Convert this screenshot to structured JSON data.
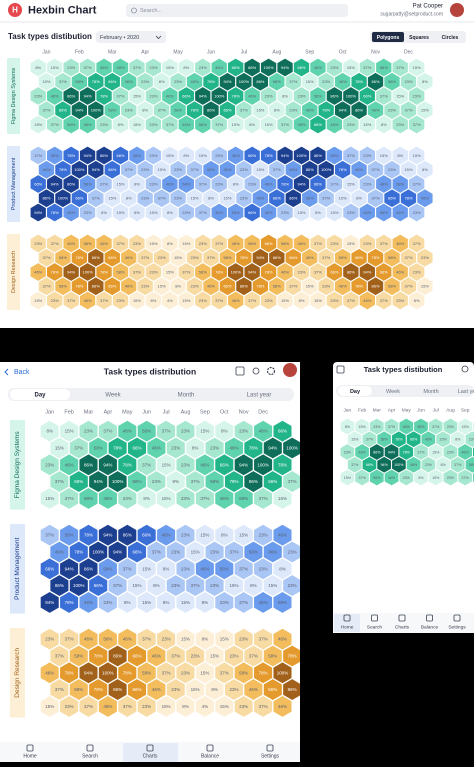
{
  "desktop": {
    "logo": "H",
    "title": "Hexbin Chart",
    "search": "Search...",
    "user_name": "Pat Cooper",
    "user_email": "sugarpatty@setproduct.com",
    "chart_title": "Task types distibution",
    "period": "February • 2020",
    "views": [
      "Polygons",
      "Squares",
      "Circles"
    ]
  },
  "months": [
    "Jan",
    "Feb",
    "Mar",
    "Apr",
    "May",
    "Jun",
    "Jul",
    "Aug",
    "Sep",
    "Oct",
    "Nov",
    "Dec"
  ],
  "groups": [
    {
      "name": "Figma Design Systems",
      "colors": [
        "#d6f5ea",
        "#a6e8cf",
        "#5fd3ad",
        "#23b58a",
        "#0e6e5a"
      ],
      "values": [
        [
          8,
          15,
          23,
          37,
          46,
          58,
          37,
          23,
          15,
          8,
          23,
          46,
          66,
          86,
          100,
          94,
          66,
          46,
          23,
          15,
          37,
          58,
          37,
          15
        ],
        [
          15,
          37,
          58,
          78,
          66,
          46,
          23,
          8,
          23,
          46,
          78,
          94,
          100,
          86,
          58,
          37,
          15,
          23,
          46,
          78,
          86,
          58,
          23,
          8
        ],
        [
          23,
          46,
          86,
          94,
          78,
          37,
          15,
          23,
          46,
          66,
          94,
          100,
          78,
          46,
          23,
          8,
          23,
          58,
          86,
          100,
          66,
          37,
          15,
          23
        ],
        [
          37,
          66,
          94,
          100,
          58,
          23,
          8,
          37,
          58,
          78,
          86,
          66,
          37,
          15,
          8,
          23,
          46,
          78,
          94,
          86,
          46,
          23,
          37,
          15
        ],
        [
          15,
          37,
          58,
          46,
          23,
          8,
          15,
          23,
          37,
          46,
          58,
          37,
          15,
          8,
          15,
          37,
          58,
          66,
          46,
          23,
          15,
          8,
          23,
          37
        ]
      ],
      "labels": [
        [
          "8%",
          "15%",
          "23%",
          "37%",
          "46%",
          "58%",
          "37%",
          "23%",
          "15%",
          "8%",
          "23%",
          "46%",
          "66%",
          "86%",
          "100%",
          "94%",
          "66%",
          "46%",
          "23%",
          "15%",
          "37%",
          "58%",
          "37%",
          "15%"
        ],
        [
          "15%",
          "37%",
          "58%",
          "78%",
          "66%",
          "46%",
          "23%",
          "8%",
          "23%",
          "46%",
          "78%",
          "94%",
          "100%",
          "86%",
          "58%",
          "37%",
          "15%",
          "23%",
          "46%",
          "78%",
          "86%",
          "58%",
          "23%",
          "8%"
        ],
        [
          "23%",
          "46%",
          "86%",
          "94%",
          "78%",
          "37%",
          "15%",
          "23%",
          "46%",
          "66%",
          "94%",
          "100%",
          "78%",
          "46%",
          "23%",
          "8%",
          "23%",
          "58%",
          "86%",
          "100%",
          "66%",
          "37%",
          "15%",
          "23%"
        ],
        [
          "37%",
          "66%",
          "94%",
          "100%",
          "58%",
          "23%",
          "8%",
          "37%",
          "58%",
          "78%",
          "86%",
          "66%",
          "37%",
          "15%",
          "8%",
          "23%",
          "46%",
          "78%",
          "94%",
          "86%",
          "46%",
          "23%",
          "37%",
          "15%"
        ],
        [
          "15%",
          "37%",
          "58%",
          "46%",
          "23%",
          "8%",
          "15%",
          "23%",
          "37%",
          "46%",
          "58%",
          "37%",
          "15%",
          "8%",
          "15%",
          "37%",
          "58%",
          "66%",
          "46%",
          "23%",
          "15%",
          "8%",
          "23%",
          "37%"
        ]
      ]
    },
    {
      "name": "Product Management",
      "colors": [
        "#dde8fb",
        "#aac6f5",
        "#6b9bec",
        "#3b6fd8",
        "#1d3f8f"
      ],
      "values": [
        [
          37,
          58,
          78,
          94,
          86,
          66,
          46,
          23,
          15,
          8,
          15,
          23,
          46,
          66,
          78,
          94,
          100,
          86,
          58,
          37,
          23,
          15,
          8,
          15
        ],
        [
          46,
          78,
          100,
          94,
          66,
          37,
          23,
          15,
          23,
          37,
          58,
          46,
          23,
          15,
          37,
          58,
          86,
          100,
          78,
          46,
          37,
          23,
          15,
          8
        ],
        [
          66,
          94,
          86,
          58,
          37,
          15,
          8,
          23,
          46,
          58,
          37,
          23,
          8,
          23,
          46,
          78,
          94,
          66,
          37,
          15,
          23,
          46,
          58,
          37
        ],
        [
          86,
          100,
          66,
          37,
          15,
          8,
          23,
          37,
          23,
          15,
          8,
          15,
          23,
          46,
          66,
          86,
          58,
          37,
          15,
          8,
          37,
          66,
          78,
          46
        ],
        [
          94,
          78,
          46,
          23,
          8,
          15,
          8,
          15,
          8,
          23,
          37,
          46,
          58,
          66,
          46,
          23,
          15,
          8,
          15,
          23,
          46,
          58,
          46,
          23
        ]
      ],
      "labels": [
        [
          "37%",
          "58%",
          "78%",
          "94%",
          "86%",
          "66%",
          "46%",
          "23%",
          "15%",
          "8%",
          "15%",
          "23%",
          "46%",
          "66%",
          "78%",
          "94%",
          "100%",
          "86%",
          "58%",
          "37%",
          "23%",
          "15%",
          "8%",
          "15%"
        ],
        [
          "46%",
          "78%",
          "100%",
          "94%",
          "66%",
          "37%",
          "23%",
          "15%",
          "23%",
          "37%",
          "58%",
          "46%",
          "23%",
          "15%",
          "37%",
          "58%",
          "86%",
          "100%",
          "78%",
          "46%",
          "37%",
          "23%",
          "15%",
          "8%"
        ],
        [
          "66%",
          "94%",
          "86%",
          "58%",
          "37%",
          "15%",
          "8%",
          "23%",
          "46%",
          "58%",
          "37%",
          "23%",
          "8%",
          "23%",
          "46%",
          "78%",
          "94%",
          "66%",
          "37%",
          "15%",
          "23%",
          "46%",
          "58%",
          "37%"
        ],
        [
          "86%",
          "100%",
          "66%",
          "37%",
          "15%",
          "8%",
          "23%",
          "37%",
          "23%",
          "15%",
          "8%",
          "15%",
          "23%",
          "46%",
          "66%",
          "86%",
          "58%",
          "37%",
          "15%",
          "8%",
          "37%",
          "66%",
          "78%",
          "46%"
        ],
        [
          "94%",
          "78%",
          "46%",
          "23%",
          "8%",
          "15%",
          "8%",
          "15%",
          "8%",
          "23%",
          "37%",
          "46%",
          "58%",
          "66%",
          "46%",
          "23%",
          "15%",
          "8%",
          "15%",
          "23%",
          "46%",
          "58%",
          "46%",
          "23%"
        ]
      ]
    },
    {
      "name": "Design Research",
      "colors": [
        "#fcefd6",
        "#f8dba3",
        "#f3bd5e",
        "#e49a2c",
        "#a2611a"
      ],
      "values": [
        [
          23,
          37,
          46,
          58,
          46,
          37,
          23,
          15,
          8,
          15,
          23,
          37,
          46,
          58,
          66,
          58,
          46,
          37,
          23,
          15,
          23,
          37,
          46,
          37
        ],
        [
          37,
          58,
          78,
          86,
          66,
          46,
          37,
          23,
          15,
          23,
          37,
          58,
          78,
          94,
          86,
          66,
          46,
          37,
          58,
          66,
          78,
          58,
          37,
          23
        ],
        [
          46,
          78,
          94,
          100,
          78,
          58,
          37,
          23,
          15,
          37,
          58,
          78,
          100,
          94,
          78,
          46,
          23,
          37,
          66,
          86,
          94,
          66,
          46,
          23
        ],
        [
          37,
          58,
          78,
          86,
          66,
          46,
          23,
          15,
          8,
          23,
          46,
          66,
          86,
          78,
          58,
          37,
          15,
          23,
          46,
          78,
          86,
          58,
          37,
          15
        ],
        [
          15,
          23,
          37,
          46,
          37,
          23,
          15,
          8,
          4,
          15,
          23,
          37,
          46,
          37,
          23,
          15,
          8,
          15,
          23,
          37,
          46,
          37,
          23,
          8
        ]
      ],
      "labels": [
        [
          "23%",
          "37%",
          "46%",
          "58%",
          "46%",
          "37%",
          "23%",
          "15%",
          "8%",
          "15%",
          "23%",
          "37%",
          "46%",
          "58%",
          "66%",
          "58%",
          "46%",
          "37%",
          "23%",
          "15%",
          "23%",
          "37%",
          "46%",
          "37%"
        ],
        [
          "37%",
          "58%",
          "78%",
          "86%",
          "66%",
          "46%",
          "37%",
          "23%",
          "15%",
          "23%",
          "37%",
          "58%",
          "78%",
          "94%",
          "86%",
          "66%",
          "46%",
          "37%",
          "58%",
          "66%",
          "78%",
          "58%",
          "37%",
          "23%"
        ],
        [
          "46%",
          "78%",
          "94%",
          "100%",
          "78%",
          "58%",
          "37%",
          "23%",
          "15%",
          "37%",
          "58%",
          "78%",
          "100%",
          "94%",
          "78%",
          "46%",
          "23%",
          "37%",
          "66%",
          "86%",
          "94%",
          "66%",
          "46%",
          "23%"
        ],
        [
          "37%",
          "58%",
          "78%",
          "86%",
          "66%",
          "46%",
          "23%",
          "15%",
          "8%",
          "23%",
          "46%",
          "66%",
          "86%",
          "78%",
          "58%",
          "37%",
          "15%",
          "23%",
          "46%",
          "78%",
          "86%",
          "58%",
          "37%",
          "15%"
        ],
        [
          "15%",
          "23%",
          "37%",
          "46%",
          "37%",
          "23%",
          "15%",
          "8%",
          "4%",
          "15%",
          "23%",
          "37%",
          "46%",
          "37%",
          "23%",
          "15%",
          "8%",
          "15%",
          "23%",
          "37%",
          "46%",
          "37%",
          "23%",
          "8%"
        ]
      ]
    }
  ],
  "tablet": {
    "back": "Back",
    "title": "Task types distribution",
    "tabs": [
      "Day",
      "Week",
      "Month",
      "Last year"
    ]
  },
  "phone": {
    "title": "Task types distibution",
    "tabs": [
      "Day",
      "Week",
      "Month",
      "Last year"
    ]
  },
  "nav": [
    "Home",
    "Search",
    "Charts",
    "Balance",
    "Settings"
  ]
}
